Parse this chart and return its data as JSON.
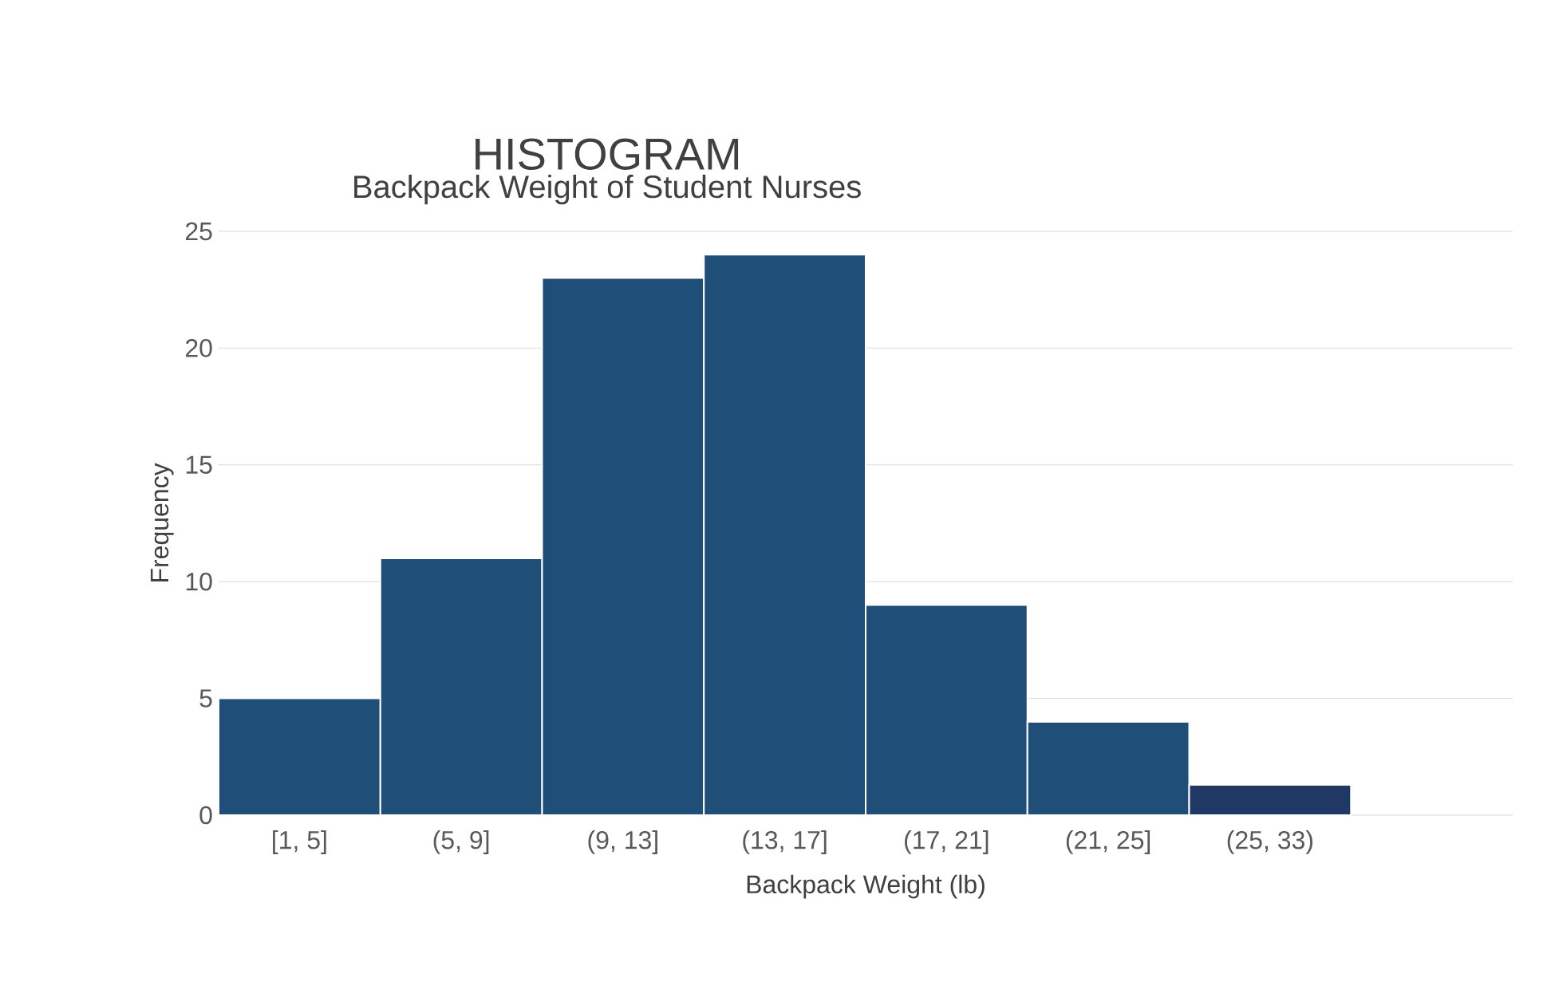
{
  "chart_data": {
    "type": "bar",
    "title": "HISTOGRAM",
    "subtitle": "Backpack Weight of Student Nurses",
    "xlabel": "Backpack Weight (lb)",
    "ylabel": "Frequency",
    "categories": [
      "[1, 5]",
      "(5, 9]",
      "(9, 13]",
      "(13, 17]",
      "(17, 21]",
      "(21, 25]",
      "(25, 33)"
    ],
    "values": [
      5,
      11,
      23,
      24,
      9,
      4,
      1.3
    ],
    "colors": [
      "#1f4e79",
      "#1f4e79",
      "#1f4e79",
      "#1f4e79",
      "#1f4e79",
      "#1f4e79",
      "#1f3864"
    ],
    "ylim": [
      0,
      25
    ],
    "yticks": [
      0,
      5,
      10,
      15,
      20,
      25
    ],
    "grid": "y"
  }
}
